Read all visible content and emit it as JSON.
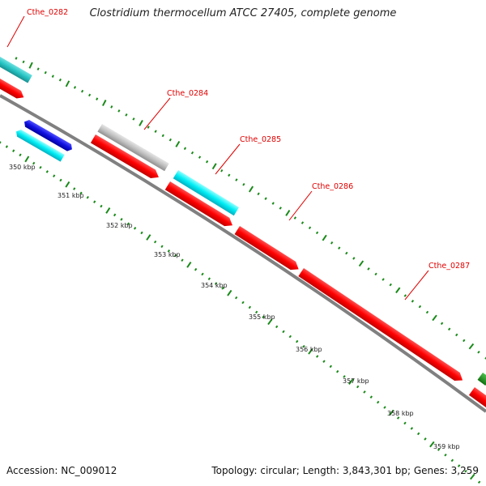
{
  "title": "Clostridium thermocellum ATCC 27405, complete genome",
  "accession": "Accession: NC_009012",
  "summary": "Topology: circular; Length: 3,843,301 bp; Genes: 3,259",
  "colors": {
    "backbone": "#808080",
    "forward_cds": "#ff0000",
    "reverse_cds": "#00e8f0",
    "teal_feature": "#28c4c4",
    "gray_feature": "#c0c0c0",
    "blue_feature": "#1010e0",
    "green_feature": "#1a9a1a",
    "tick": "#1a8a1a",
    "label": "#e00000"
  },
  "ticks": [
    "350 kbp",
    "351 kbp",
    "352 kbp",
    "353 kbp",
    "354 kbp",
    "355 kbp",
    "356 kbp",
    "357 kbp",
    "358 kbp",
    "359 kbp"
  ],
  "gene_labels": [
    "Cthe_0282",
    "Cthe_0284",
    "Cthe_0285",
    "Cthe_0286",
    "Cthe_0287"
  ]
}
